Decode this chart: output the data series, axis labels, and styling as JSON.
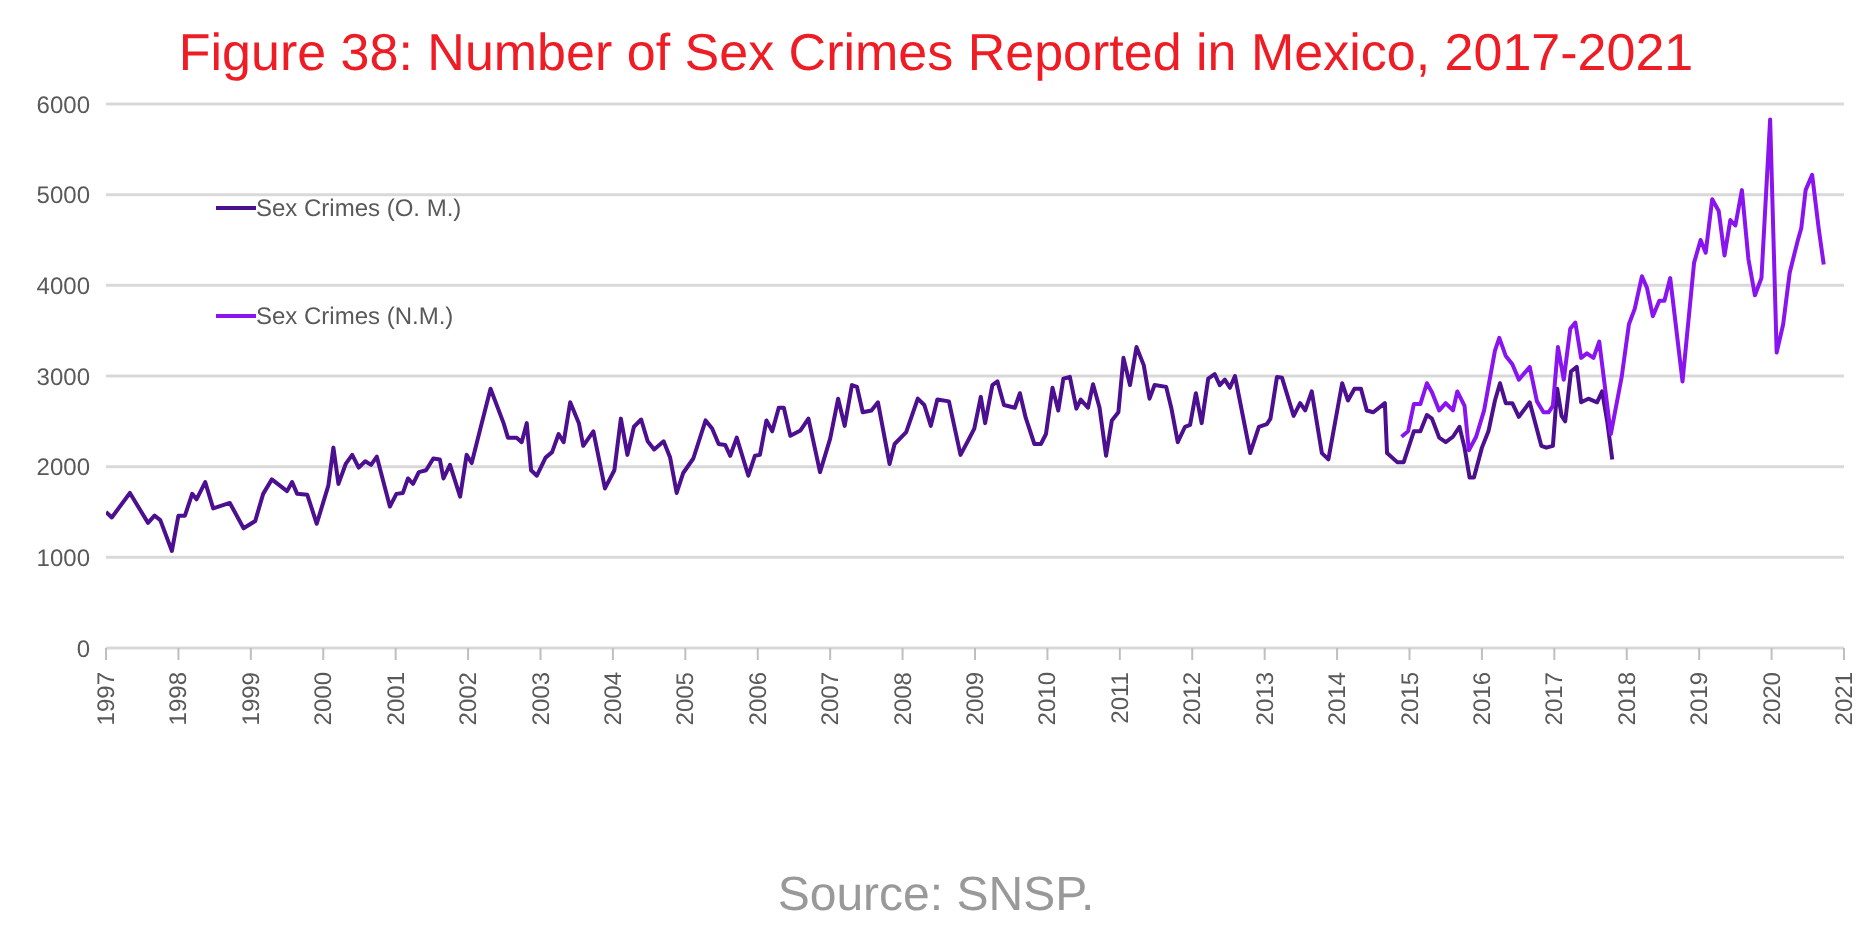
{
  "chart_data": {
    "type": "line",
    "title": "Figure 38: Number of Sex Crimes Reported in Mexico, 2017-2021",
    "annotations": [
      "Source: SNSP."
    ],
    "xlim": [
      1997,
      2021
    ],
    "xticks": [
      1997,
      1998,
      1999,
      2000,
      2001,
      2002,
      2003,
      2004,
      2005,
      2006,
      2007,
      2008,
      2009,
      2010,
      2011,
      2012,
      2013,
      2014,
      2015,
      2016,
      2017,
      2018,
      2019,
      2020,
      2021
    ],
    "ylim": [
      0,
      6000
    ],
    "yticks": [
      0,
      1000,
      2000,
      3000,
      4000,
      5000,
      6000
    ],
    "grid": "y",
    "legend": "top left",
    "marker": "none",
    "line_style": "solid",
    "series": [
      {
        "name": "Sex Crimes (O. M.)",
        "color": "#4b0f8f",
        "x": [
          1997.0,
          1997.08,
          1997.33,
          1997.58,
          1997.67,
          1997.75,
          1997.91,
          1998.0,
          1998.09,
          1998.19,
          1998.25,
          1998.37,
          1998.48,
          1998.71,
          1998.9,
          1999.06,
          1999.17,
          1999.29,
          1999.5,
          1999.57,
          1999.64,
          1999.78,
          1999.91,
          2000.07,
          2000.14,
          2000.21,
          2000.31,
          2000.4,
          2000.49,
          2000.58,
          2000.66,
          2000.74,
          2000.92,
          2001.01,
          2001.1,
          2001.17,
          2001.24,
          2001.32,
          2001.42,
          2001.52,
          2001.61,
          2001.66,
          2001.75,
          2001.89,
          2001.98,
          2002.05,
          2002.17,
          2002.31,
          2002.49,
          2002.55,
          2002.67,
          2002.74,
          2002.81,
          2002.87,
          2002.95,
          2003.07,
          2003.16,
          2003.25,
          2003.32,
          2003.41,
          2003.53,
          2003.59,
          2003.73,
          2003.89,
          2004.02,
          2004.11,
          2004.2,
          2004.29,
          2004.39,
          2004.48,
          2004.57,
          2004.7,
          2004.79,
          2004.88,
          2004.97,
          2005.11,
          2005.28,
          2005.37,
          2005.46,
          2005.55,
          2005.62,
          2005.71,
          2005.87,
          2005.96,
          2006.03,
          2006.12,
          2006.2,
          2006.29,
          2006.36,
          2006.45,
          2006.59,
          2006.7,
          2006.86,
          2007.0,
          2007.11,
          2007.2,
          2007.3,
          2007.37,
          2007.45,
          2007.57,
          2007.66,
          2007.82,
          2007.89,
          2008.05,
          2008.21,
          2008.3,
          2008.39,
          2008.48,
          2008.64,
          2008.8,
          2008.92,
          2008.99,
          2009.08,
          2009.14,
          2009.24,
          2009.31,
          2009.4,
          2009.55,
          2009.62,
          2009.7,
          2009.82,
          2009.91,
          2009.98,
          2010.07,
          2010.15,
          2010.22,
          2010.31,
          2010.4,
          2010.46,
          2010.56,
          2010.63,
          2010.72,
          2010.81,
          2010.89,
          2010.98,
          2011.05,
          2011.14,
          2011.23,
          2011.33,
          2011.41,
          2011.48,
          2011.64,
          2011.71,
          2011.8,
          2011.9,
          2011.97,
          2012.05,
          2012.13,
          2012.22,
          2012.31,
          2012.38,
          2012.45,
          2012.52,
          2012.59,
          2012.8,
          2012.92,
          2013.03,
          2013.08,
          2013.17,
          2013.24,
          2013.4,
          2013.49,
          2013.56,
          2013.65,
          2013.79,
          2013.88,
          2014.07,
          2014.15,
          2014.24,
          2014.33,
          2014.41,
          2014.5,
          2014.66,
          2014.69,
          2014.83,
          2014.92,
          2015.06,
          2015.15,
          2015.24,
          2015.31,
          2015.41,
          2015.5,
          2015.6,
          2015.69,
          2015.76,
          2015.83,
          2015.89,
          2016.0,
          2016.09,
          2016.18,
          2016.25,
          2016.33,
          2016.42,
          2016.51,
          2016.66,
          2016.82,
          2016.89,
          2016.98,
          2017.04,
          2017.1,
          2017.15,
          2017.23,
          2017.31,
          2017.37,
          2017.47,
          2017.59,
          2017.66,
          2017.73,
          2017.8
        ],
        "values": [
          1500,
          1440,
          1710,
          1380,
          1460,
          1410,
          1070,
          1460,
          1460,
          1700,
          1640,
          1830,
          1540,
          1600,
          1320,
          1400,
          1700,
          1860,
          1730,
          1830,
          1700,
          1690,
          1370,
          1790,
          2210,
          1810,
          2030,
          2130,
          1990,
          2060,
          2020,
          2110,
          1560,
          1700,
          1710,
          1870,
          1810,
          1940,
          1960,
          2090,
          2080,
          1870,
          2020,
          1670,
          2130,
          2040,
          2420,
          2860,
          2480,
          2320,
          2320,
          2270,
          2480,
          1960,
          1900,
          2100,
          2160,
          2360,
          2270,
          2710,
          2480,
          2230,
          2390,
          1760,
          1960,
          2530,
          2130,
          2440,
          2520,
          2280,
          2190,
          2280,
          2100,
          1710,
          1930,
          2090,
          2510,
          2420,
          2250,
          2240,
          2120,
          2320,
          1900,
          2120,
          2130,
          2510,
          2390,
          2650,
          2650,
          2340,
          2400,
          2530,
          1940,
          2310,
          2750,
          2450,
          2900,
          2880,
          2600,
          2620,
          2710,
          2030,
          2250,
          2380,
          2750,
          2680,
          2450,
          2740,
          2720,
          2130,
          2310,
          2420,
          2770,
          2480,
          2900,
          2940,
          2680,
          2650,
          2810,
          2540,
          2250,
          2250,
          2360,
          2870,
          2620,
          2970,
          2990,
          2640,
          2740,
          2650,
          2910,
          2650,
          2120,
          2510,
          2600,
          3200,
          2900,
          3320,
          3120,
          2750,
          2900,
          2880,
          2650,
          2270,
          2440,
          2460,
          2810,
          2480,
          2970,
          3020,
          2900,
          2960,
          2870,
          3000,
          2150,
          2440,
          2470,
          2530,
          2990,
          2980,
          2560,
          2700,
          2620,
          2830,
          2150,
          2080,
          2920,
          2730,
          2860,
          2860,
          2620,
          2600,
          2700,
          2150,
          2050,
          2050,
          2390,
          2390,
          2570,
          2530,
          2320,
          2270,
          2330,
          2440,
          2210,
          1880,
          1880,
          2210,
          2390,
          2730,
          2920,
          2700,
          2700,
          2550,
          2710,
          2230,
          2210,
          2230,
          2860,
          2560,
          2500,
          3050,
          3100,
          2710,
          2750,
          2710,
          2830,
          2500,
          2080
        ]
      },
      {
        "name": "Sex Crimes (N.M.)",
        "color": "#8a14f0",
        "x": [
          2014.89,
          2014.98,
          2015.06,
          2015.15,
          2015.24,
          2015.31,
          2015.41,
          2015.5,
          2015.6,
          2015.66,
          2015.76,
          2015.82,
          2015.92,
          2016.03,
          2016.18,
          2016.24,
          2016.33,
          2016.42,
          2016.51,
          2016.66,
          2016.76,
          2016.85,
          2016.92,
          2016.98,
          2017.05,
          2017.13,
          2017.22,
          2017.29,
          2017.37,
          2017.45,
          2017.54,
          2017.62,
          2017.78,
          2017.93,
          2018.03,
          2018.11,
          2018.21,
          2018.28,
          2018.36,
          2018.45,
          2018.52,
          2018.6,
          2018.77,
          2018.93,
          2019.02,
          2019.09,
          2019.18,
          2019.27,
          2019.35,
          2019.43,
          2019.5,
          2019.59,
          2019.68,
          2019.77,
          2019.86,
          2019.98,
          2020.07,
          2020.16,
          2020.25,
          2020.36,
          2020.41,
          2020.47,
          2020.56,
          2020.65,
          2020.72
        ],
        "values": [
          2330,
          2390,
          2690,
          2690,
          2920,
          2820,
          2620,
          2700,
          2620,
          2830,
          2670,
          2180,
          2330,
          2620,
          3280,
          3420,
          3220,
          3130,
          2960,
          3100,
          2720,
          2600,
          2600,
          2670,
          3320,
          2960,
          3520,
          3590,
          3200,
          3250,
          3200,
          3380,
          2360,
          2990,
          3570,
          3740,
          4100,
          3970,
          3660,
          3830,
          3830,
          4080,
          2940,
          4250,
          4500,
          4360,
          4950,
          4820,
          4330,
          4720,
          4660,
          5050,
          4290,
          3890,
          4080,
          5830,
          3260,
          3570,
          4140,
          4490,
          4630,
          5050,
          5220,
          4630,
          4230
        ]
      }
    ]
  }
}
